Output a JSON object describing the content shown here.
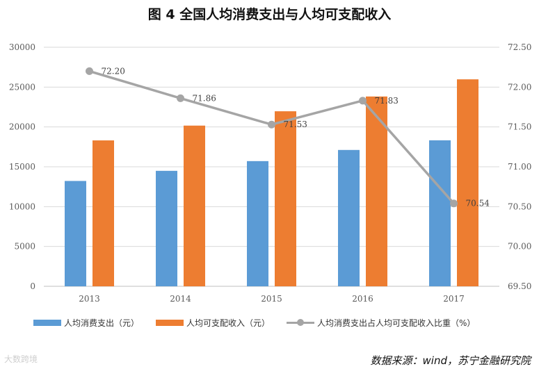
{
  "title": "图 4  全国人均消费支出与人均可支配收入",
  "source": "数据来源：wind，苏宁金融研究院",
  "watermark": "大数跨境",
  "colors": {
    "consumption": "#5b9bd5",
    "income": "#ed7d31",
    "ratio": "#a5a5a5"
  },
  "chart_data": {
    "type": "bar+line",
    "categories": [
      "2013",
      "2014",
      "2015",
      "2016",
      "2017"
    ],
    "series": [
      {
        "name": "人均消费支出（元）",
        "type": "bar",
        "axis": "left",
        "values": [
          13220,
          14491,
          15712,
          17111,
          18322
        ]
      },
      {
        "name": "人均可支配收入（元）",
        "type": "bar",
        "axis": "left",
        "values": [
          18311,
          20167,
          21966,
          23821,
          25974
        ]
      },
      {
        "name": "人均消费支出占人均可支配收入比重（%）",
        "type": "line",
        "axis": "right",
        "values": [
          72.2,
          71.86,
          71.53,
          71.83,
          70.54
        ],
        "labels": [
          "72.20",
          "71.86",
          "71.53",
          "71.83",
          "70.54"
        ]
      }
    ],
    "y_left": {
      "min": 0,
      "max": 30000,
      "ticks": [
        "0",
        "5000",
        "10000",
        "15000",
        "20000",
        "25000",
        "30000"
      ]
    },
    "y_right": {
      "min": 69.5,
      "max": 72.5,
      "ticks": [
        "69.50",
        "70.00",
        "70.50",
        "71.00",
        "71.50",
        "72.00",
        "72.50"
      ]
    },
    "legend_position": "bottom"
  }
}
